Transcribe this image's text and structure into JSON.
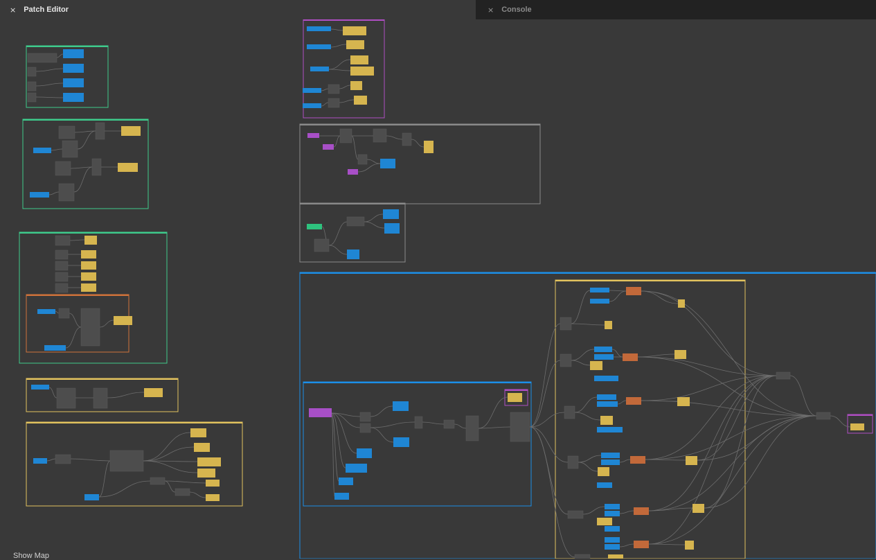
{
  "tabs": {
    "left": {
      "close_icon": "×",
      "title": "Patch Editor"
    },
    "right": {
      "close_icon": "×",
      "title": "Console"
    }
  },
  "footer": {
    "show_map_label": "Show Map"
  },
  "colors": {
    "background": "#393939",
    "console_background": "#222222",
    "node_gray": "#4d4d4d",
    "node_blue": "#1f86d4",
    "node_yellow": "#d6b54f",
    "node_purple": "#a84fc7",
    "node_green": "#2ec27e",
    "node_orange": "#c2693a",
    "group_green": "#3ecb8c",
    "group_purple": "#b04ec4",
    "group_gray": "#8a8a8a",
    "group_blue": "#1c8fe8",
    "group_yellow": "#e3c35e",
    "group_orange": "#d0723a",
    "wire": "#6e6e6e"
  }
}
